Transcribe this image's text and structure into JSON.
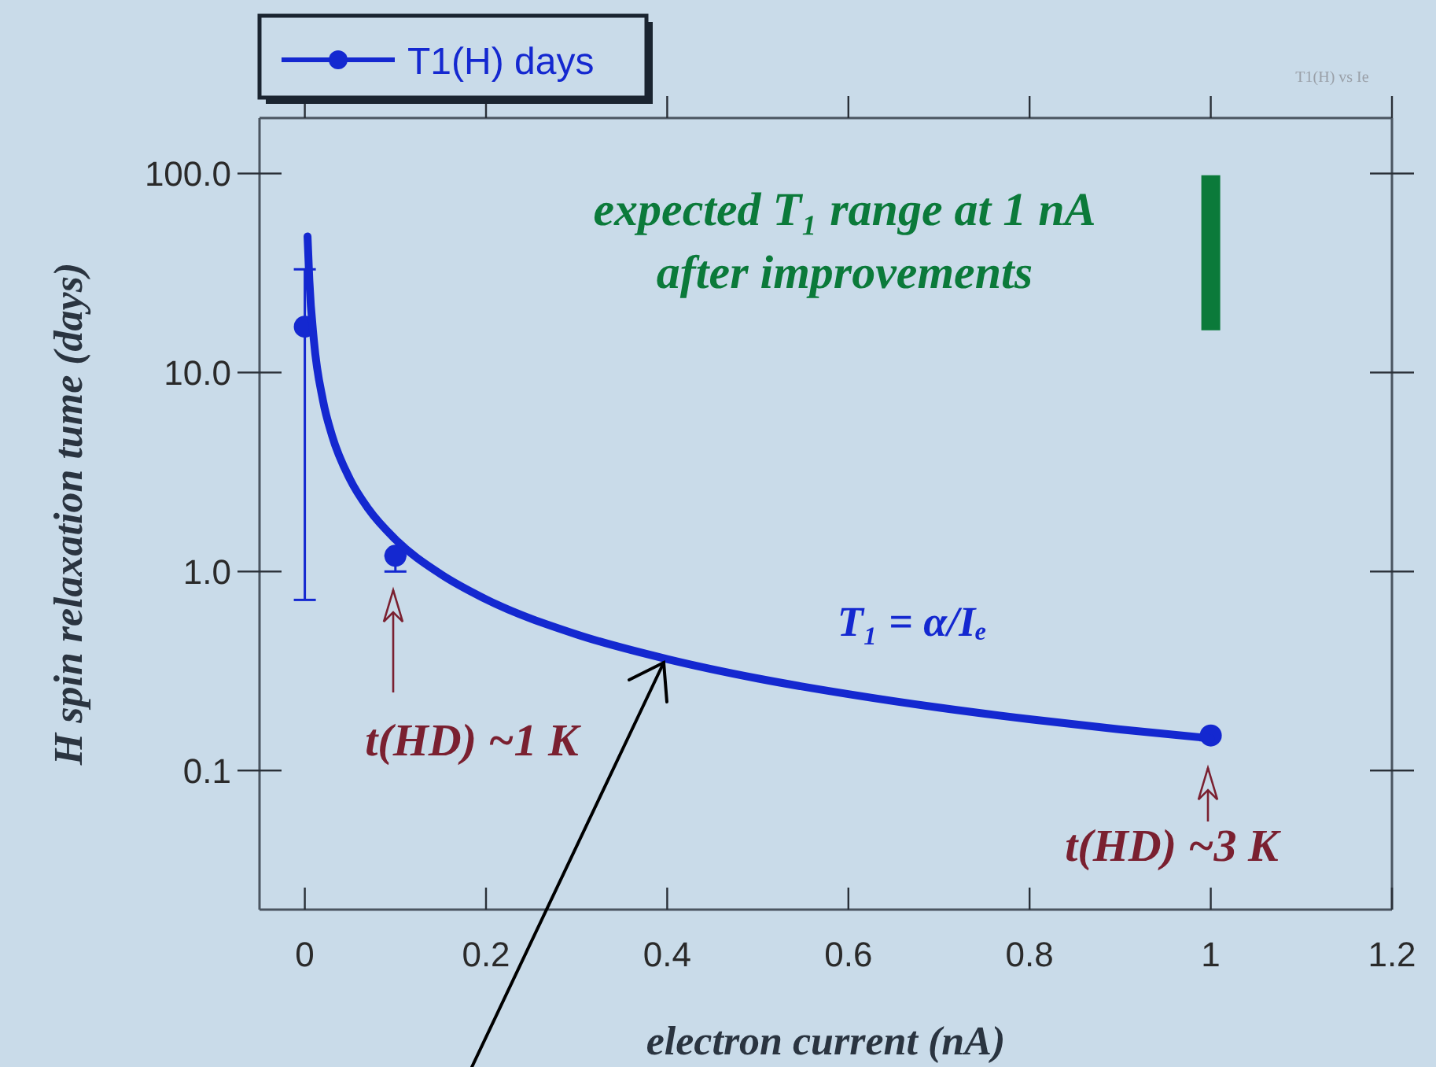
{
  "chart_data": {
    "type": "scatter",
    "xlabel": "electron current (nA)",
    "ylabel": "H spin relaxation tume  (days)",
    "xlim": [
      -0.05,
      1.2
    ],
    "xticks": [
      0,
      0.2,
      0.4,
      0.6,
      0.8,
      1,
      1.2
    ],
    "ylim": [
      0.02,
      190
    ],
    "yticks": [
      {
        "value": 0.1,
        "label": "0.1"
      },
      {
        "value": 1,
        "label": "1.0"
      },
      {
        "value": 10,
        "label": "10.0"
      },
      {
        "value": 100,
        "label": "100.0"
      }
    ],
    "log": "y",
    "grid": false,
    "legend": "top left",
    "marker": "circle",
    "series": [
      {
        "name": "T1(H)  days",
        "color": "#1428d0",
        "x": [
          0,
          0.1,
          1
        ],
        "values": [
          17,
          1.2,
          0.15
        ],
        "errors": [
          [
            0.72,
            33
          ],
          [
            1.0,
            1.2
          ],
          null
        ]
      },
      {
        "type": "line",
        "color": "#1428d0",
        "marker": "none",
        "x": [
          0.003,
          0.005,
          0.01,
          0.02,
          0.03,
          0.05,
          0.07,
          0.1,
          0.15,
          0.2,
          0.3,
          0.4,
          0.5,
          0.6,
          0.7,
          0.8,
          0.9,
          1.0
        ],
        "values": [
          48.3,
          29,
          14.5,
          7.25,
          4.83,
          2.9,
          2.07,
          1.45,
          0.97,
          0.725,
          0.483,
          0.363,
          0.29,
          0.242,
          0.207,
          0.181,
          0.161,
          0.145
        ]
      },
      {
        "type": "bar",
        "color": "#0b7a3a",
        "x": [
          1
        ],
        "base": [
          16.3
        ],
        "values": [
          81.7
        ]
      }
    ],
    "annotations": [
      "t(HD) ~1 K",
      "t(HD) ~3 K",
      "expected T₁ range at 1 nA\nafter improvements",
      "T₁ = α/Iₑ",
      "T1(H) vs Ie"
    ]
  }
}
